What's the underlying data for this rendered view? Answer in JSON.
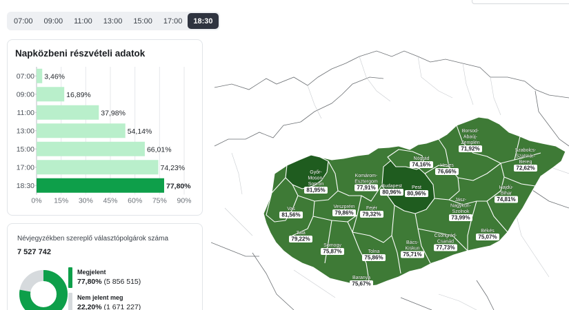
{
  "time_tabs": [
    {
      "label": "07:00",
      "active": false
    },
    {
      "label": "09:00",
      "active": false
    },
    {
      "label": "11:00",
      "active": false
    },
    {
      "label": "13:00",
      "active": false
    },
    {
      "label": "15:00",
      "active": false
    },
    {
      "label": "17:00",
      "active": false
    },
    {
      "label": "18:30",
      "active": true
    }
  ],
  "participation_card": {
    "title": "Napközbeni részvételi adatok"
  },
  "chart_data": {
    "type": "bar",
    "orientation": "horizontal",
    "title": "Napközbeni részvételi adatok",
    "categories": [
      "07:00",
      "09:00",
      "11:00",
      "13:00",
      "15:00",
      "17:00",
      "18:30"
    ],
    "values": [
      3.46,
      16.89,
      37.98,
      54.14,
      66.01,
      74.23,
      77.8
    ],
    "value_labels": [
      "3,46%",
      "16,89%",
      "37,98%",
      "54,14%",
      "66,01%",
      "74,23%",
      "77,80%"
    ],
    "xlim": [
      0,
      90
    ],
    "x_ticks": [
      "0%",
      "15%",
      "30%",
      "45%",
      "60%",
      "75%",
      "90%"
    ],
    "x_tick_values": [
      0,
      15,
      30,
      45,
      60,
      75,
      90
    ],
    "grid": true,
    "colors": {
      "bar": "#b9efcb",
      "bar_active": "#0e9f4a"
    }
  },
  "voters_card": {
    "title": "Névjegyzékben szereplő választópolgárok száma",
    "total": "7 527 742",
    "turned_out": {
      "label": "Megjelent",
      "percent": "77,80%",
      "count": "(5 856 515)",
      "fraction": 0.778,
      "color": "#0e9f4a"
    },
    "not_turned_out": {
      "label": "Nem jelent meg",
      "percent": "22,20%",
      "count": "(1 671 227)",
      "fraction": 0.222,
      "color": "#d6dadd"
    }
  },
  "map": {
    "colors": {
      "fill": "#3e7a36",
      "fill_dark": "#1f5c1f",
      "border": "#ffffff",
      "neighbor_border": "#5b5f63"
    },
    "counties": [
      {
        "name": "Győr-Moson-Sopron",
        "lines": [
          "Győr-",
          "Moson-",
          "Sopron"
        ],
        "value": "81,95%"
      },
      {
        "name": "Komárom-Esztergom",
        "lines": [
          "Komárom-",
          "Esztergom"
        ],
        "value": "77,91%"
      },
      {
        "name": "Budapest",
        "lines": [
          "Budapest"
        ],
        "value": "80,96%"
      },
      {
        "name": "Pest",
        "lines": [
          "Pest"
        ],
        "value": "80,96%"
      },
      {
        "name": "Nógrád",
        "lines": [
          "Nógrád"
        ],
        "value": "74,16%"
      },
      {
        "name": "Heves",
        "lines": [
          "Heves"
        ],
        "value": "76,66%"
      },
      {
        "name": "Borsod-Abaúj-Zemplén",
        "lines": [
          "Borsod-",
          "Abaúj-",
          "Zemplén"
        ],
        "value": "71,92%"
      },
      {
        "name": "Szabolcs-Szatmár-Bereg",
        "lines": [
          "Szabolcs-",
          "Szatmár-",
          "Bereg"
        ],
        "value": "72,62%"
      },
      {
        "name": "Hajdú-Bihar",
        "lines": [
          "Hajdú-",
          "Bihar"
        ],
        "value": "74,81%"
      },
      {
        "name": "Jász-Nagykun-Szolnok",
        "lines": [
          "Jász-",
          "Nagykun-",
          "Szolnok"
        ],
        "value": "73,99%"
      },
      {
        "name": "Vas",
        "lines": [
          "Vas"
        ],
        "value": "81,56%"
      },
      {
        "name": "Veszprém",
        "lines": [
          "Veszprém"
        ],
        "value": "79,86%"
      },
      {
        "name": "Fejér",
        "lines": [
          "Fejér"
        ],
        "value": "79,32%"
      },
      {
        "name": "Zala",
        "lines": [
          "Zala"
        ],
        "value": "79,22%"
      },
      {
        "name": "Somogy",
        "lines": [
          "Somogy"
        ],
        "value": "75,87%"
      },
      {
        "name": "Tolna",
        "lines": [
          "Tolna"
        ],
        "value": "75,86%"
      },
      {
        "name": "Bács-Kiskun",
        "lines": [
          "Bács-",
          "Kiskun"
        ],
        "value": "75,71%"
      },
      {
        "name": "Csongrád-Csanád",
        "lines": [
          "Csongrád-",
          "Csanád"
        ],
        "value": "77,73%"
      },
      {
        "name": "Békés",
        "lines": [
          "Békés"
        ],
        "value": "75,07%"
      },
      {
        "name": "Baranya",
        "lines": [
          "Baranya"
        ],
        "value": "75,67%"
      }
    ]
  }
}
